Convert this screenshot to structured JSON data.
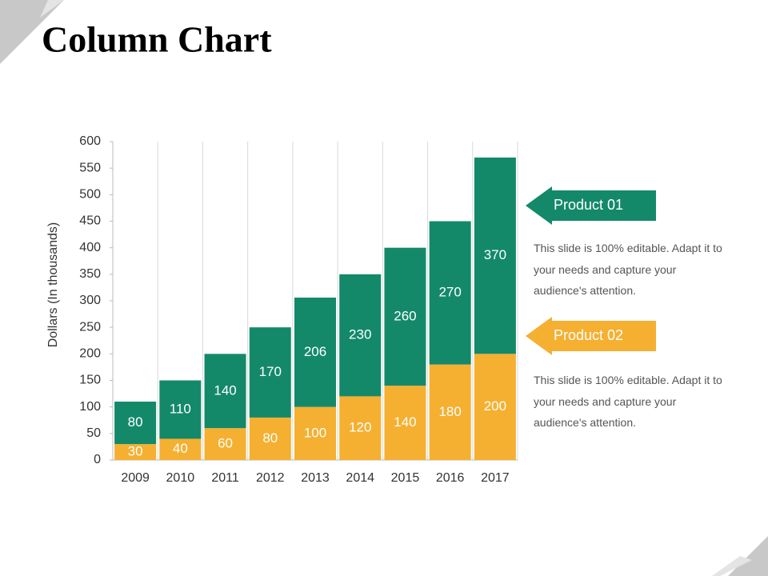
{
  "chart_data": {
    "type": "bar",
    "stacked": true,
    "title": "Column Chart",
    "y_label": "Dollars (In thousands)",
    "categories": [
      "2009",
      "2010",
      "2011",
      "2012",
      "2013",
      "2014",
      "2015",
      "2016",
      "2017"
    ],
    "series": [
      {
        "name": "Product 01",
        "color": "#14896a",
        "values": [
          80,
          110,
          140,
          170,
          206,
          230,
          260,
          270,
          370
        ]
      },
      {
        "name": "Product 02",
        "color": "#f5b031",
        "values": [
          30,
          40,
          60,
          80,
          100,
          120,
          140,
          180,
          200
        ]
      }
    ],
    "ylim": [
      0,
      600
    ],
    "yticks": [
      0,
      50,
      100,
      150,
      200,
      250,
      300,
      350,
      400,
      450,
      500,
      550,
      600
    ],
    "notes": [
      "This slide is 100% editable. Adapt it to your needs and capture your audience's attention.",
      "This slide is 100% editable. Adapt it to your needs and capture your audience's attention."
    ]
  }
}
